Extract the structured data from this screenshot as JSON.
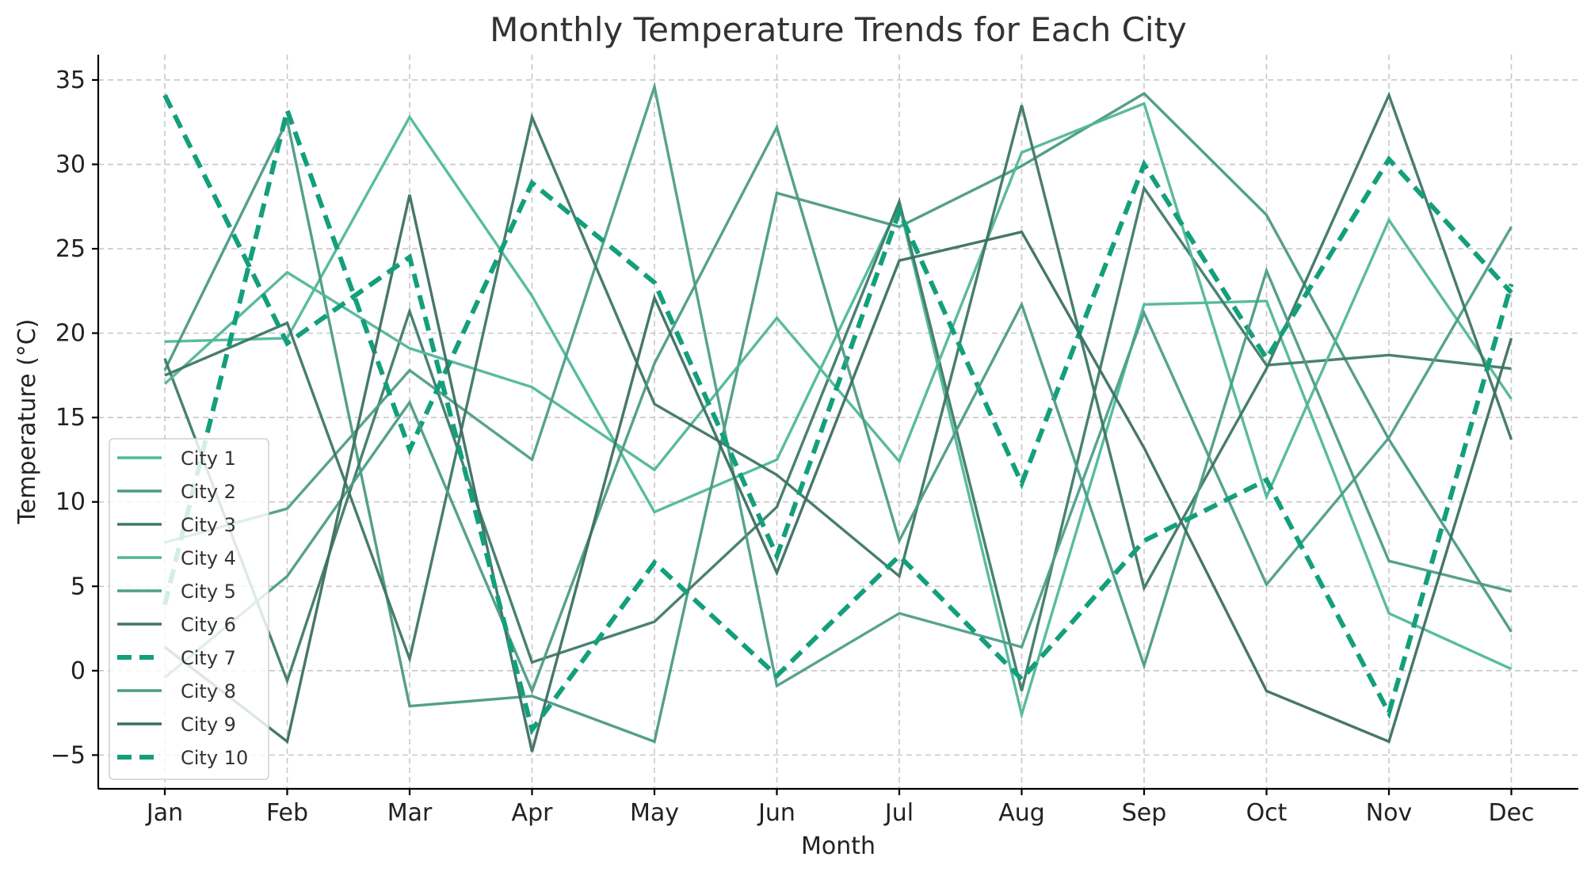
{
  "chart_data": {
    "type": "line",
    "title": "Monthly Temperature Trends for Each City",
    "xlabel": "Month",
    "ylabel": "Temperature (°C)",
    "categories": [
      "Jan",
      "Feb",
      "Mar",
      "Apr",
      "May",
      "Jun",
      "Jul",
      "Aug",
      "Sep",
      "Oct",
      "Nov",
      "Dec"
    ],
    "ylim": [
      -7,
      36.5
    ],
    "yticks": [
      -5,
      0,
      5,
      10,
      15,
      20,
      25,
      30,
      35
    ],
    "ytick_labels": [
      "−5",
      "0",
      "5",
      "10",
      "15",
      "20",
      "25",
      "30",
      "35"
    ],
    "grid": true,
    "legend_position": "lower-left",
    "series": [
      {
        "name": "City 1",
        "values": [
          19.5,
          19.7,
          32.8,
          22.2,
          9.4,
          12.5,
          27.6,
          -2.6,
          21.7,
          21.9,
          3.4,
          0.1
        ],
        "color": "#4fb89a",
        "dashed": false
      },
      {
        "name": "City 2",
        "values": [
          17.8,
          32.6,
          -2.1,
          -1.5,
          -4.2,
          28.3,
          26.3,
          29.9,
          34.2,
          27.0,
          13.7,
          2.3
        ],
        "color": "#4b9a84",
        "dashed": false
      },
      {
        "name": "City 3",
        "values": [
          18.5,
          -0.6,
          21.3,
          0.5,
          2.9,
          9.7,
          27.8,
          -1.2,
          28.6,
          18.1,
          18.7,
          17.9
        ],
        "color": "#3f7a68",
        "dashed": false
      },
      {
        "name": "City 4",
        "values": [
          17.0,
          23.6,
          19.1,
          16.8,
          11.9,
          20.9,
          12.4,
          30.7,
          33.6,
          10.3,
          26.7,
          16.1
        ],
        "color": "#52b697",
        "dashed": false
      },
      {
        "name": "City 5",
        "values": [
          7.6,
          9.6,
          17.8,
          12.5,
          34.6,
          -0.9,
          3.4,
          1.4,
          21.2,
          5.1,
          13.8,
          26.3
        ],
        "color": "#4e9e89",
        "dashed": false
      },
      {
        "name": "City 6",
        "values": [
          17.5,
          20.6,
          0.7,
          32.8,
          15.8,
          11.6,
          5.6,
          33.5,
          4.9,
          17.9,
          34.1,
          13.7
        ],
        "color": "#3e7664",
        "dashed": false
      },
      {
        "name": "City 7",
        "values": [
          3.9,
          33.2,
          13.1,
          28.9,
          23.0,
          6.8,
          27.2,
          11.1,
          30.0,
          18.5,
          30.3,
          22.4
        ],
        "color": "#139f7c",
        "dashed": true
      },
      {
        "name": "City 8",
        "values": [
          -0.4,
          5.6,
          15.9,
          -1.2,
          18.2,
          32.2,
          7.7,
          21.7,
          0.3,
          23.7,
          6.5,
          4.7
        ],
        "color": "#4d9c86",
        "dashed": false
      },
      {
        "name": "City 9",
        "values": [
          1.4,
          -4.2,
          28.2,
          -4.8,
          22.1,
          5.8,
          24.3,
          26.0,
          13.2,
          -1.2,
          -4.2,
          19.7
        ],
        "color": "#3c7060",
        "dashed": false
      },
      {
        "name": "City 10",
        "values": [
          34.1,
          19.4,
          24.5,
          -3.5,
          6.4,
          -0.3,
          6.8,
          -0.5,
          7.7,
          11.3,
          -2.5,
          22.9
        ],
        "color": "#139f7c",
        "dashed": true
      }
    ]
  }
}
